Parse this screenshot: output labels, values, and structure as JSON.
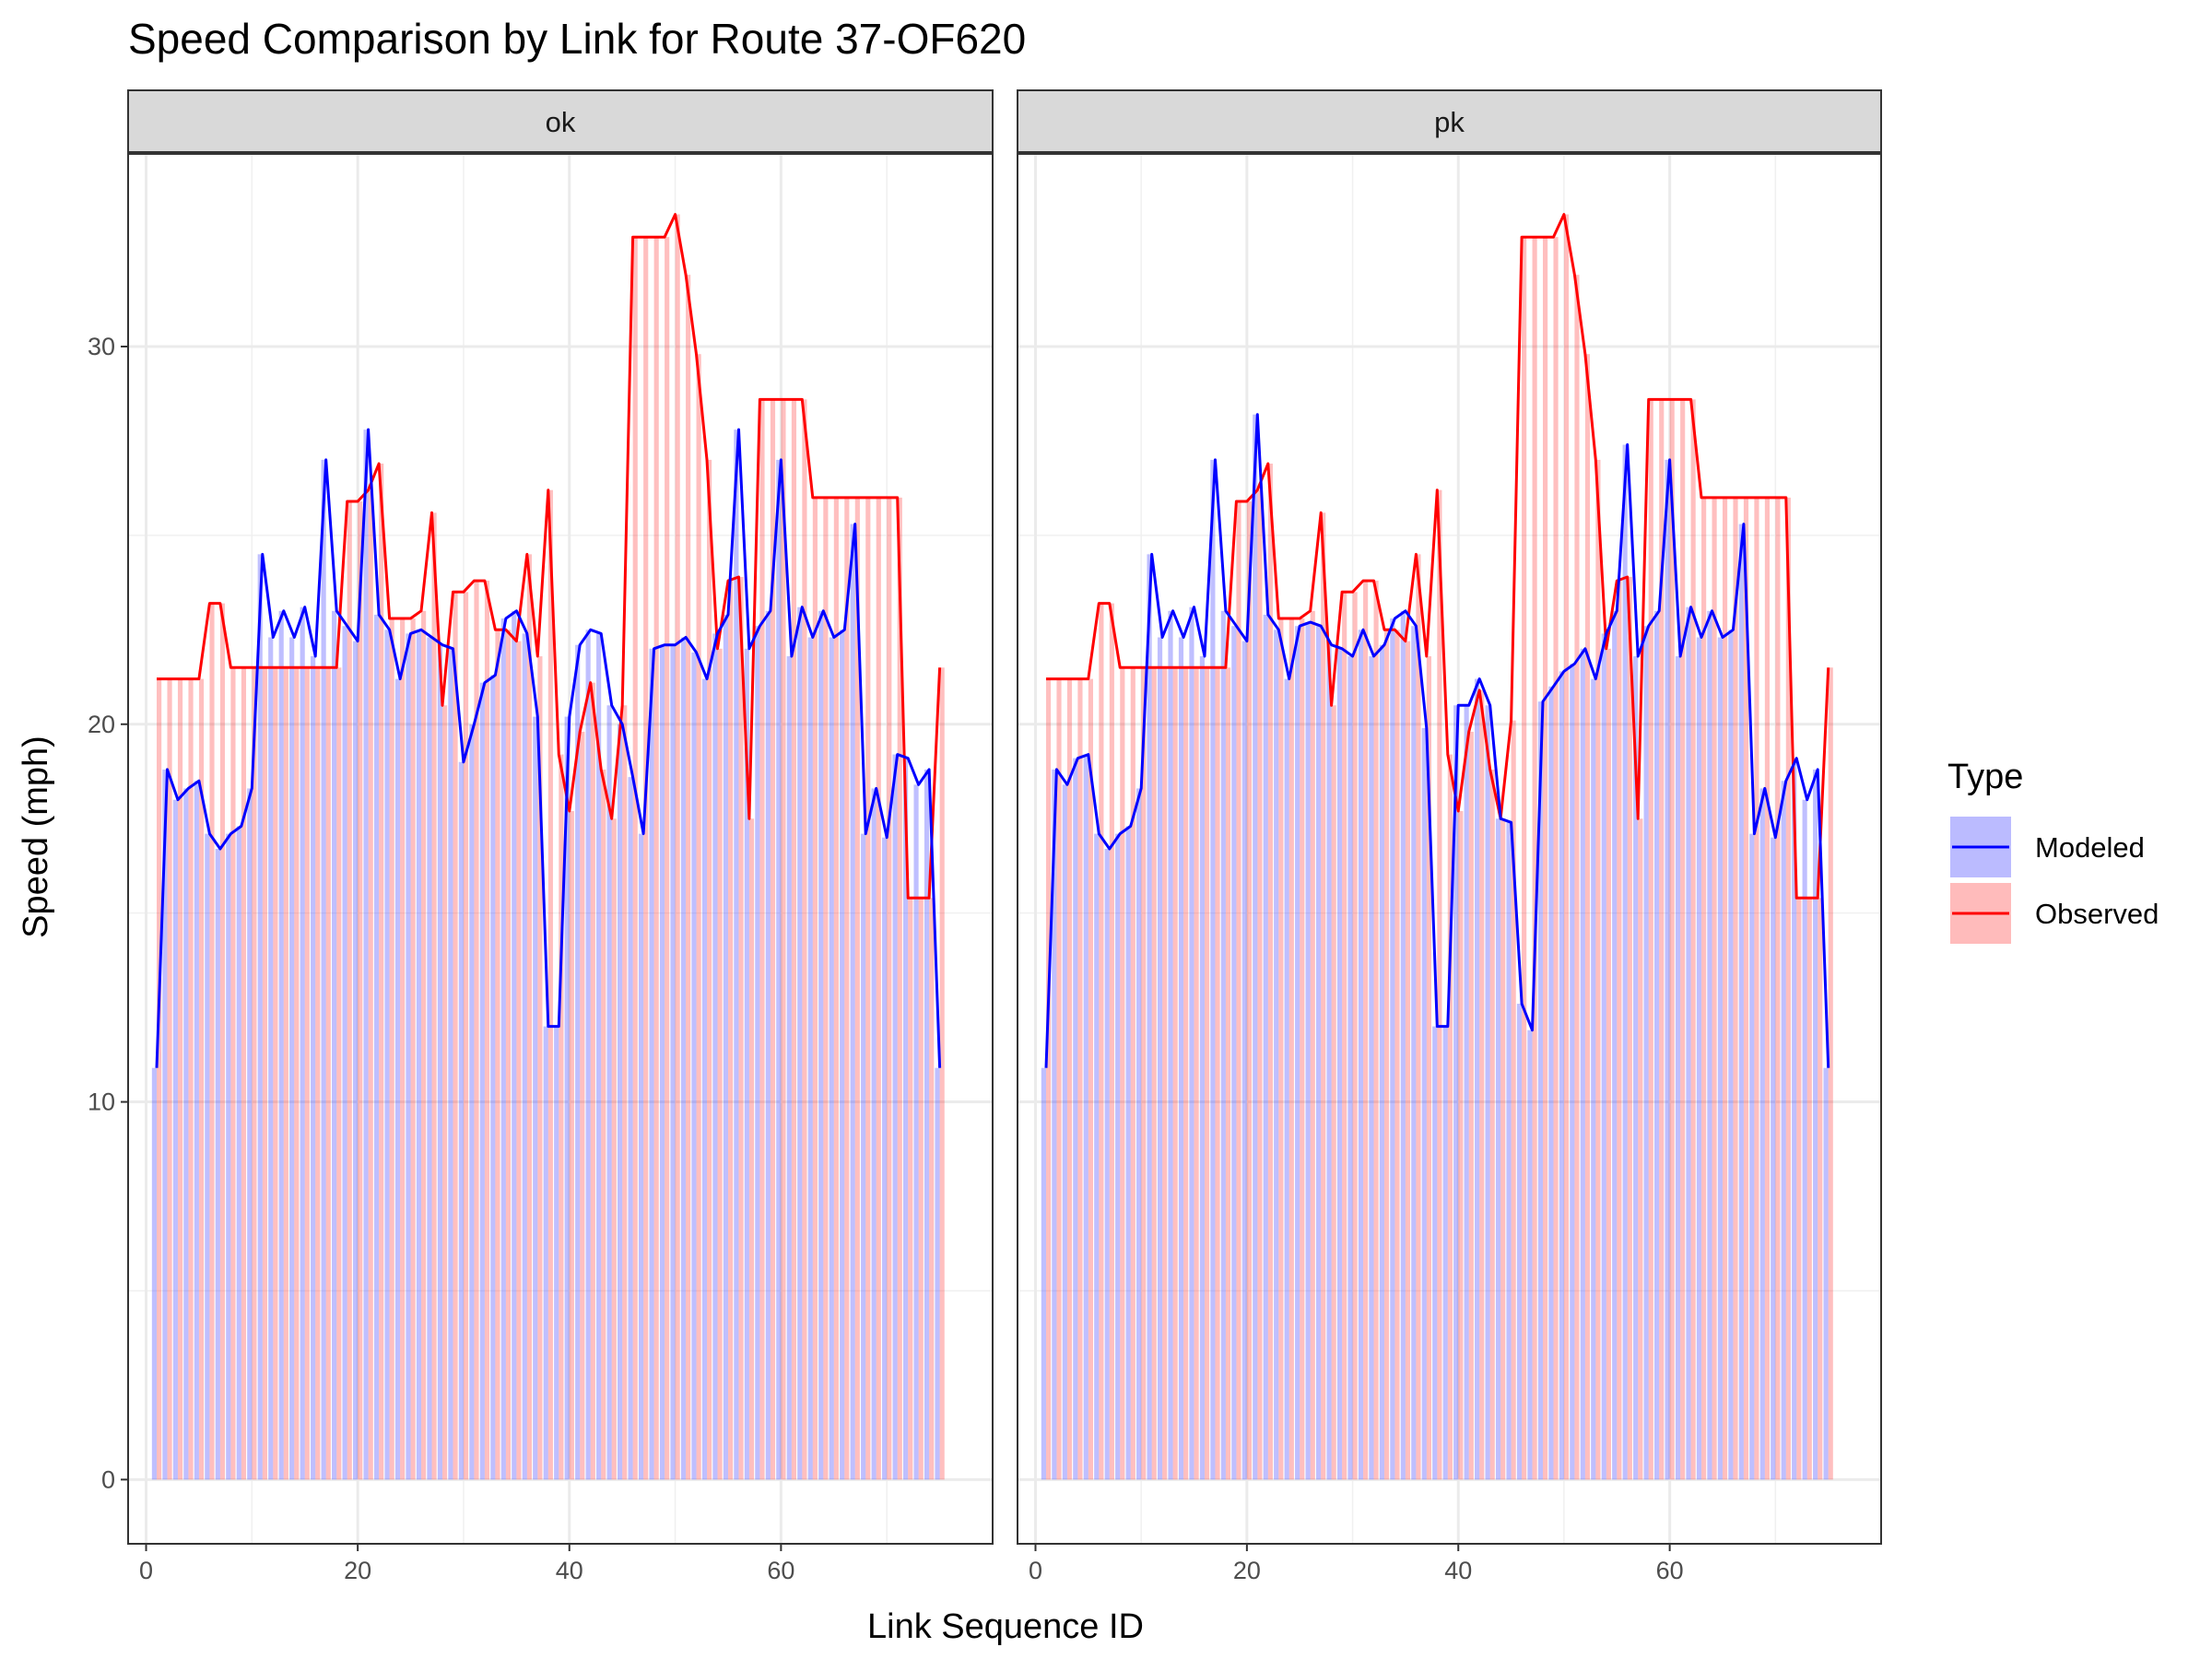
{
  "chart_data": {
    "type": "line",
    "title": "Speed Comparison by Link for Route 37-OF620",
    "xlabel": "Link Sequence ID",
    "ylabel": "Speed (mph)",
    "xlim": [
      -1.7,
      80
    ],
    "ylim": [
      -1.7,
      35.1
    ],
    "x_ticks": [
      0,
      20,
      40,
      60
    ],
    "y_ticks": [
      0,
      10,
      20,
      30
    ],
    "x_tick_labels": [
      "0",
      "20",
      "40",
      "60"
    ],
    "y_tick_labels": [
      "0",
      "10",
      "20",
      "30"
    ],
    "grid": true,
    "bars_underlay": true,
    "legend": {
      "title": "Type",
      "placement": "right",
      "entries": [
        {
          "label": "Modeled",
          "line_color": "#0000ff",
          "fill_color": "#bbbbff"
        },
        {
          "label": "Observed",
          "line_color": "#ff0000",
          "fill_color": "#ffbbbb"
        }
      ]
    },
    "panels": [
      {
        "label": "ok",
        "series": [
          {
            "name": "Modeled",
            "color": "#0000ff",
            "x": [
              1,
              2,
              3,
              4,
              5,
              6,
              7,
              8,
              9,
              10,
              11,
              12,
              13,
              14,
              15,
              16,
              17,
              18,
              19,
              20,
              21,
              22,
              23,
              24,
              25,
              26,
              27,
              28,
              29,
              30,
              31,
              32,
              33,
              34,
              35,
              36,
              37,
              38,
              39,
              40,
              41,
              42,
              43,
              44,
              45,
              46,
              47,
              48,
              49,
              50,
              51,
              52,
              53,
              54,
              55,
              56,
              57,
              58,
              59,
              60,
              61,
              62,
              63,
              64,
              65,
              66,
              67,
              68,
              69,
              70,
              71,
              72,
              73,
              74,
              75
            ],
            "y": [
              10.9,
              18.8,
              18.0,
              18.3,
              18.5,
              17.1,
              16.7,
              17.1,
              17.3,
              18.3,
              24.5,
              22.3,
              23.0,
              22.3,
              23.1,
              21.8,
              27.0,
              23.0,
              22.6,
              22.2,
              27.8,
              22.9,
              22.5,
              21.2,
              22.4,
              22.5,
              22.3,
              22.1,
              22.0,
              19.0,
              20.0,
              21.1,
              21.3,
              22.8,
              23.0,
              22.4,
              20.2,
              12.0,
              12.0,
              20.2,
              22.1,
              22.5,
              22.4,
              20.5,
              20.0,
              18.6,
              17.1,
              22.0,
              22.1,
              22.1,
              22.3,
              21.9,
              21.2,
              22.4,
              22.9,
              27.8,
              22.0,
              22.6,
              23.0,
              27.0,
              21.8,
              23.1,
              22.3,
              23.0,
              22.3,
              22.5,
              25.3,
              17.1,
              18.3,
              17.0,
              19.2,
              19.1,
              18.4,
              18.8,
              10.9
            ]
          },
          {
            "name": "Observed",
            "color": "#ff0000",
            "x": [
              1,
              2,
              3,
              4,
              5,
              6,
              7,
              8,
              9,
              10,
              11,
              12,
              13,
              14,
              15,
              16,
              17,
              18,
              19,
              20,
              21,
              22,
              23,
              24,
              25,
              26,
              27,
              28,
              29,
              30,
              31,
              32,
              33,
              34,
              35,
              36,
              37,
              38,
              39,
              40,
              41,
              42,
              43,
              44,
              45,
              46,
              47,
              48,
              49,
              50,
              51,
              52,
              53,
              54,
              55,
              56,
              57,
              58,
              59,
              60,
              61,
              62,
              63,
              64,
              65,
              66,
              67,
              68,
              69,
              70,
              71,
              72,
              73,
              74,
              75
            ],
            "y": [
              21.2,
              21.2,
              21.2,
              21.2,
              21.2,
              23.2,
              23.2,
              21.5,
              21.5,
              21.5,
              21.5,
              21.5,
              21.5,
              21.5,
              21.5,
              21.5,
              21.5,
              21.5,
              25.9,
              25.9,
              26.2,
              26.9,
              22.8,
              22.8,
              22.8,
              23.0,
              25.6,
              20.5,
              23.5,
              23.5,
              23.8,
              23.8,
              22.5,
              22.5,
              22.2,
              24.5,
              21.8,
              26.2,
              19.2,
              17.7,
              19.8,
              21.1,
              18.8,
              17.5,
              20.5,
              32.9,
              32.9,
              32.9,
              32.9,
              33.5,
              31.9,
              29.8,
              27.0,
              22.0,
              23.8,
              23.9,
              17.5,
              28.6,
              28.6,
              28.6,
              28.6,
              28.6,
              26.0,
              26.0,
              26.0,
              26.0,
              26.0,
              26.0,
              26.0,
              26.0,
              26.0,
              15.4,
              15.4,
              15.4,
              21.5
            ]
          }
        ]
      },
      {
        "label": "pk",
        "series": [
          {
            "name": "Modeled",
            "color": "#0000ff",
            "x": [
              1,
              2,
              3,
              4,
              5,
              6,
              7,
              8,
              9,
              10,
              11,
              12,
              13,
              14,
              15,
              16,
              17,
              18,
              19,
              20,
              21,
              22,
              23,
              24,
              25,
              26,
              27,
              28,
              29,
              30,
              31,
              32,
              33,
              34,
              35,
              36,
              37,
              38,
              39,
              40,
              41,
              42,
              43,
              44,
              45,
              46,
              47,
              48,
              49,
              50,
              51,
              52,
              53,
              54,
              55,
              56,
              57,
              58,
              59,
              60,
              61,
              62,
              63,
              64,
              65,
              66,
              67,
              68,
              69,
              70,
              71,
              72,
              73,
              74,
              75
            ],
            "y": [
              10.9,
              18.8,
              18.4,
              19.1,
              19.2,
              17.1,
              16.7,
              17.1,
              17.3,
              18.3,
              24.5,
              22.3,
              23.0,
              22.3,
              23.1,
              21.8,
              27.0,
              23.0,
              22.6,
              22.2,
              28.2,
              22.9,
              22.5,
              21.2,
              22.6,
              22.7,
              22.6,
              22.1,
              22.0,
              21.8,
              22.5,
              21.8,
              22.1,
              22.8,
              23.0,
              22.6,
              19.9,
              12.0,
              12.0,
              20.5,
              20.5,
              21.2,
              20.5,
              17.5,
              17.4,
              12.6,
              11.9,
              20.6,
              21.0,
              21.4,
              21.6,
              22.0,
              21.2,
              22.4,
              23.0,
              27.4,
              21.8,
              22.6,
              23.0,
              27.0,
              21.8,
              23.1,
              22.3,
              23.0,
              22.3,
              22.5,
              25.3,
              17.1,
              18.3,
              17.0,
              18.5,
              19.1,
              18.0,
              18.8,
              10.9
            ]
          },
          {
            "name": "Observed",
            "color": "#ff0000",
            "x": [
              1,
              2,
              3,
              4,
              5,
              6,
              7,
              8,
              9,
              10,
              11,
              12,
              13,
              14,
              15,
              16,
              17,
              18,
              19,
              20,
              21,
              22,
              23,
              24,
              25,
              26,
              27,
              28,
              29,
              30,
              31,
              32,
              33,
              34,
              35,
              36,
              37,
              38,
              39,
              40,
              41,
              42,
              43,
              44,
              45,
              46,
              47,
              48,
              49,
              50,
              51,
              52,
              53,
              54,
              55,
              56,
              57,
              58,
              59,
              60,
              61,
              62,
              63,
              64,
              65,
              66,
              67,
              68,
              69,
              70,
              71,
              72,
              73,
              74,
              75
            ],
            "y": [
              21.2,
              21.2,
              21.2,
              21.2,
              21.2,
              23.2,
              23.2,
              21.5,
              21.5,
              21.5,
              21.5,
              21.5,
              21.5,
              21.5,
              21.5,
              21.5,
              21.5,
              21.5,
              25.9,
              25.9,
              26.2,
              26.9,
              22.8,
              22.8,
              22.8,
              23.0,
              25.6,
              20.5,
              23.5,
              23.5,
              23.8,
              23.8,
              22.5,
              22.5,
              22.2,
              24.5,
              21.8,
              26.2,
              19.2,
              17.7,
              19.8,
              20.9,
              18.8,
              17.5,
              20.1,
              32.9,
              32.9,
              32.9,
              32.9,
              33.5,
              31.9,
              29.8,
              27.0,
              22.0,
              23.8,
              23.9,
              17.5,
              28.6,
              28.6,
              28.6,
              28.6,
              28.6,
              26.0,
              26.0,
              26.0,
              26.0,
              26.0,
              26.0,
              26.0,
              26.0,
              26.0,
              15.4,
              15.4,
              15.4,
              21.5
            ]
          }
        ]
      }
    ]
  }
}
